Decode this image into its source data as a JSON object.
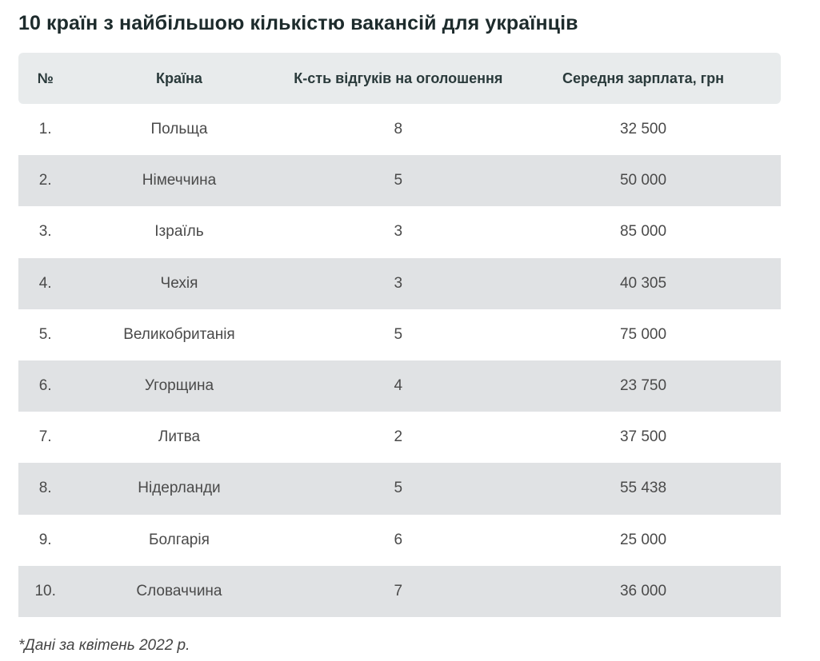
{
  "title": "10 країн з найбільшою кількістю вакансій для українців",
  "table": {
    "headers": [
      "№",
      "Країна",
      "К-сть відгуків на оголошення",
      "Середня зарплата, грн"
    ],
    "rows": [
      [
        "1.",
        "Польща",
        "8",
        "32 500"
      ],
      [
        "2.",
        "Німеччина",
        "5",
        "50 000"
      ],
      [
        "3.",
        "Ізраїль",
        "3",
        "85 000"
      ],
      [
        "4.",
        "Чехія",
        "3",
        "40 305"
      ],
      [
        "5.",
        "Великобританія",
        "5",
        "75 000"
      ],
      [
        "6.",
        "Угорщина",
        "4",
        "23 750"
      ],
      [
        "7.",
        "Литва",
        "2",
        "37 500"
      ],
      [
        "8.",
        "Нідерланди",
        "5",
        "55 438"
      ],
      [
        "9.",
        "Болгарія",
        "6",
        "25 000"
      ],
      [
        "10.",
        "Словаччина",
        "7",
        "36 000"
      ]
    ]
  },
  "footnote": "*Дані за квітень 2022 р.",
  "colors": {
    "header_bg": "#e8ebec",
    "stripe_bg": "#e0e2e4",
    "title_color": "#1d2b2c"
  }
}
